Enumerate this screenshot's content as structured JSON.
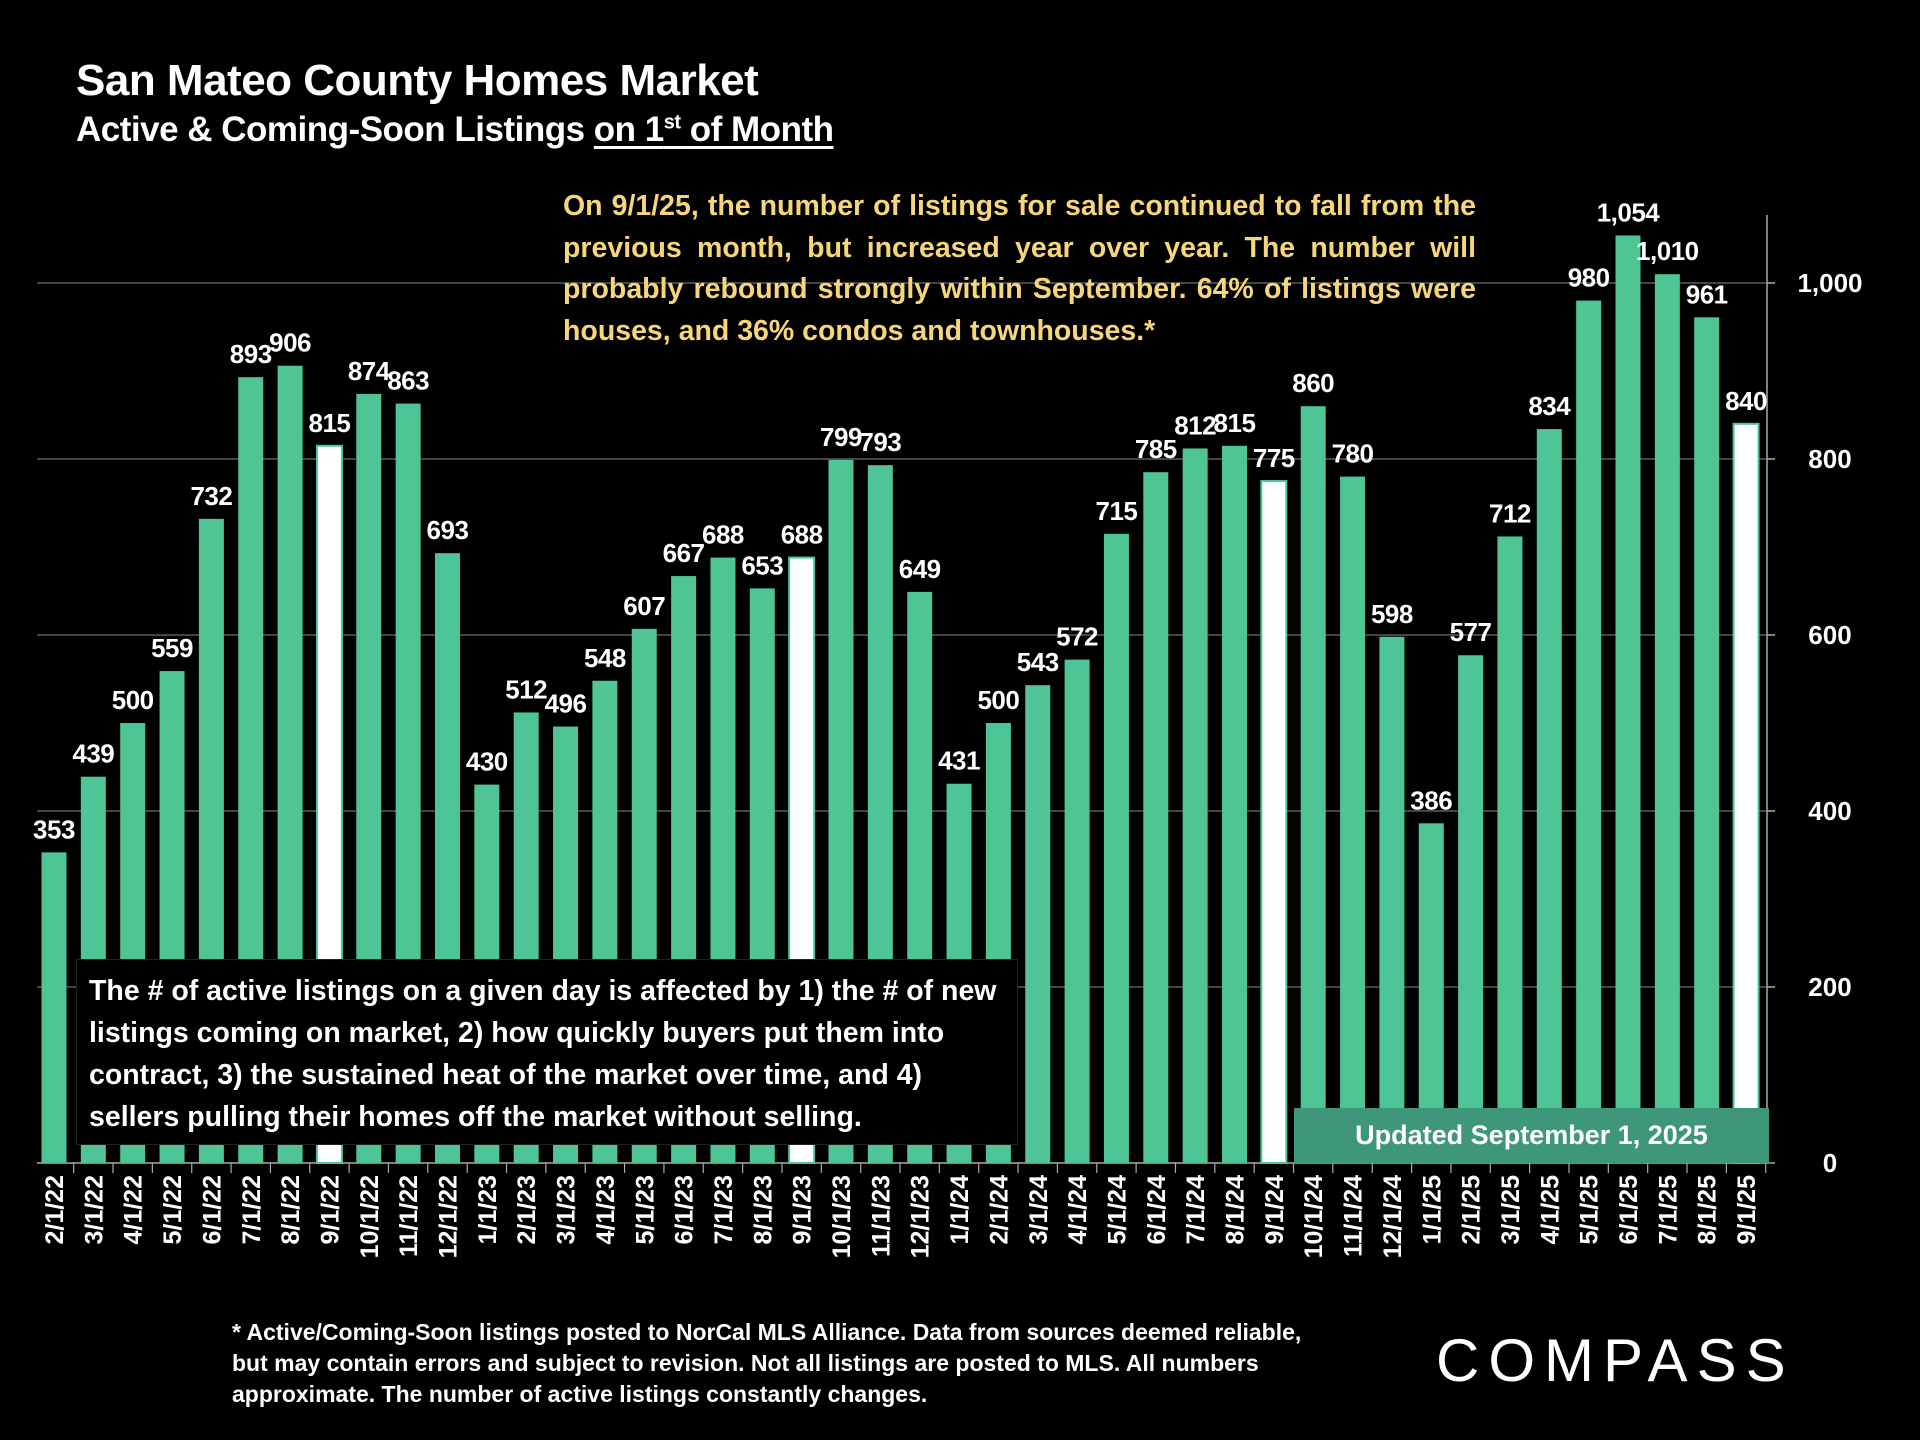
{
  "header": {
    "title": "San Mateo County Homes Market",
    "subtitle_prefix": "Active & Coming-Soon Listings ",
    "subtitle_underlined_a": "on 1",
    "subtitle_sup": "st",
    "subtitle_underlined_b": " of Month"
  },
  "annotations": {
    "top": "On 9/1/25, the number of listings for sale continued to fall from the previous month, but increased year over year. The number will probably rebound strongly within September. 64% of listings were houses, and 36% condos and townhouses.*",
    "bottom": "The # of active listings on a given day is affected by 1) the # of new listings coming on market, 2) how quickly buyers put them into contract, 3) the sustained heat of the market over time, and 4) sellers pulling their homes off the market without selling.",
    "updated": "Updated September 1, 2025"
  },
  "footnote": "* Active/Coming-Soon listings posted to NorCal MLS Alliance.  Data from sources deemed reliable, but may contain errors and subject to revision.  Not all listings are posted to MLS. All numbers approximate. The number of active listings constantly changes.",
  "logo": "COMPASS",
  "colors": {
    "bar": "#4fc494",
    "highlight": "#ffffff",
    "grid": "#5a5a5a",
    "note": "#f6d67a"
  },
  "chart_data": {
    "type": "bar",
    "title": "San Mateo County Homes Market",
    "categories": [
      "2/1/22",
      "3/1/22",
      "4/1/22",
      "5/1/22",
      "6/1/22",
      "7/1/22",
      "8/1/22",
      "9/1/22",
      "10/1/22",
      "11/1/22",
      "12/1/22",
      "1/1/23",
      "2/1/23",
      "3/1/23",
      "4/1/23",
      "5/1/23",
      "6/1/23",
      "7/1/23",
      "8/1/23",
      "9/1/23",
      "10/1/23",
      "11/1/23",
      "12/1/23",
      "1/1/24",
      "2/1/24",
      "3/1/24",
      "4/1/24",
      "5/1/24",
      "6/1/24",
      "7/1/24",
      "8/1/24",
      "9/1/24",
      "10/1/24",
      "11/1/24",
      "12/1/24",
      "1/1/25",
      "2/1/25",
      "3/1/25",
      "4/1/25",
      "5/1/25",
      "6/1/25",
      "7/1/25",
      "8/1/25",
      "9/1/25"
    ],
    "values": [
      353,
      439,
      500,
      559,
      732,
      893,
      906,
      815,
      874,
      863,
      693,
      430,
      512,
      496,
      548,
      607,
      667,
      688,
      653,
      688,
      799,
      793,
      649,
      431,
      500,
      543,
      572,
      715,
      785,
      812,
      815,
      775,
      860,
      780,
      598,
      386,
      577,
      712,
      834,
      980,
      1054,
      1010,
      961,
      840
    ],
    "labels": [
      "353",
      "439",
      "500",
      "559",
      "732",
      "893",
      "906",
      "815",
      "874",
      "863",
      "693",
      "430",
      "512",
      "496",
      "548",
      "607",
      "667",
      "688",
      "653",
      "688",
      "799",
      "793",
      "649",
      "431",
      "500",
      "543",
      "572",
      "715",
      "785",
      "812",
      "815",
      "775",
      "860",
      "780",
      "598",
      "386",
      "577",
      "712",
      "834",
      "980",
      "1,054",
      "1,010",
      "961",
      "840"
    ],
    "highlighted": [
      "9/1/22",
      "9/1/23",
      "9/1/24",
      "9/1/25"
    ],
    "ylim": [
      0,
      1000
    ],
    "yticks": [
      0,
      200,
      400,
      600,
      800,
      1000
    ],
    "ytick_labels": [
      "0",
      "200",
      "400",
      "600",
      "800",
      "1,000"
    ],
    "y_axis_side": "right",
    "grid": true,
    "xlabel": "",
    "ylabel": ""
  }
}
